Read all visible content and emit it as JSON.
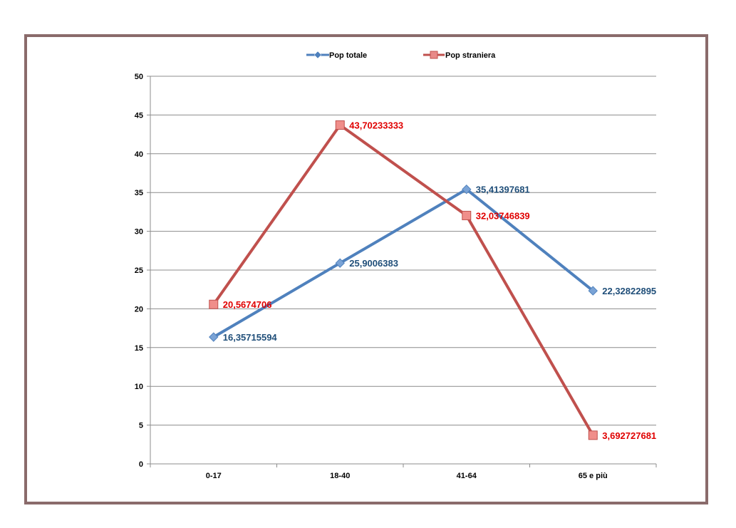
{
  "chart_data": {
    "type": "line",
    "title": "",
    "xlabel": "",
    "ylabel": "",
    "categories": [
      "0-17",
      "18-40",
      "41-64",
      "65 e più"
    ],
    "ylim": [
      0,
      50
    ],
    "yticks": [
      0,
      5,
      10,
      15,
      20,
      25,
      30,
      35,
      40,
      45,
      50
    ],
    "grid": true,
    "legend_position": "top",
    "series": [
      {
        "name": "Pop totale",
        "marker": "diamond",
        "color": "#4f81bd",
        "label_color": "#1f4e79",
        "values": [
          16.35715594,
          25.9006383,
          35.41397681,
          22.32822895
        ],
        "labels": [
          "16,35715594",
          "25,9006383",
          "35,41397681",
          "22,32822895"
        ]
      },
      {
        "name": "Pop straniera",
        "marker": "square",
        "color": "#c0504d",
        "label_color": "#e00000",
        "values": [
          20.5674706,
          43.70233333,
          32.03746839,
          3.692727681
        ],
        "labels": [
          "20,5674706",
          "43,70233333",
          "32,03746839",
          "3,692727681"
        ]
      }
    ]
  }
}
